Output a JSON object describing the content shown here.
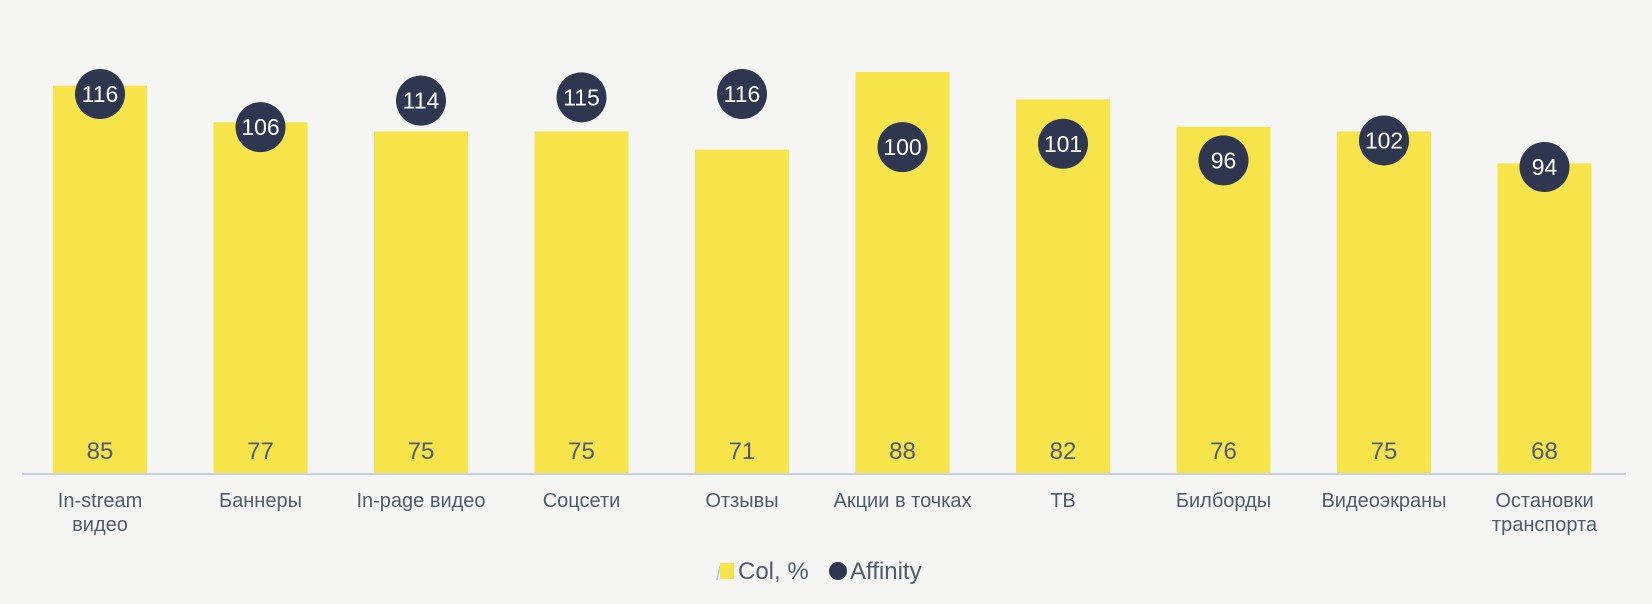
{
  "chart_data": {
    "type": "bar",
    "categories": [
      [
        "In-stream",
        "видео"
      ],
      [
        "Баннеры"
      ],
      [
        "In-page видео"
      ],
      [
        "Соцсети"
      ],
      [
        "Отзывы"
      ],
      [
        "Акции в точках"
      ],
      [
        "ТВ"
      ],
      [
        "Билборды"
      ],
      [
        "Видеоэкраны"
      ],
      [
        "Остановки",
        "транспорта"
      ]
    ],
    "series": [
      {
        "name": "Col, %",
        "kind": "bar",
        "values": [
          85,
          77,
          75,
          75,
          71,
          88,
          82,
          76,
          75,
          68
        ]
      },
      {
        "name": "Affinity",
        "kind": "dot",
        "values": [
          116,
          106,
          114,
          115,
          116,
          100,
          101,
          96,
          102,
          94
        ]
      }
    ],
    "bar_ylim": [
      0,
      100
    ],
    "dot_ylim": [
      30,
      150
    ],
    "grid": false,
    "legend_position": "bottom-center"
  },
  "colors": {
    "bar": "#f7e44a",
    "dot": "#2e3650",
    "axis": "#c9cfe0",
    "text": "#515a6e"
  }
}
